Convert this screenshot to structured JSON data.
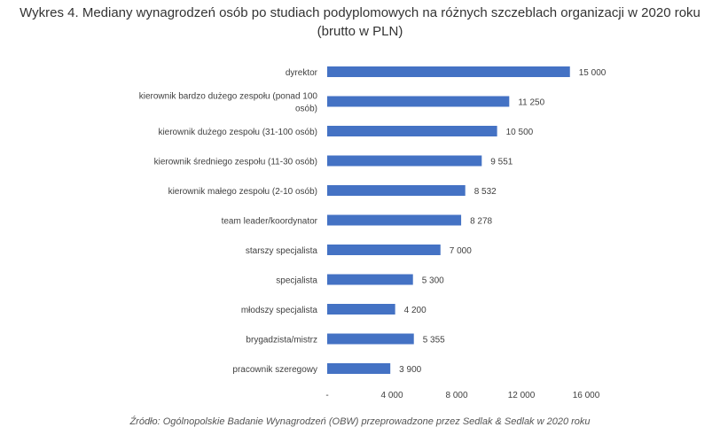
{
  "chart_data": {
    "type": "bar",
    "orientation": "horizontal",
    "title_line1": "Wykres 4. Mediany wynagrodzeń osób po studiach podyplomowych na różnych szczeblach organizacji w 2020 roku",
    "title_line2": "(brutto w PLN)",
    "categories": [
      [
        "dyrektor"
      ],
      [
        "kierownik bardzo  dużego zespołu (ponad 100",
        "osób)"
      ],
      [
        "kierownik dużego  zespołu (31-100 osób)"
      ],
      [
        "kierownik średniego zespołu (11-30 osób)"
      ],
      [
        "kierownik małego zespołu (2-10 osób)"
      ],
      [
        "team leader/koordynator"
      ],
      [
        "starszy specjalista"
      ],
      [
        "specjalista"
      ],
      [
        "młodszy specjalista"
      ],
      [
        "brygadzista/mistrz"
      ],
      [
        "pracownik szeregowy"
      ]
    ],
    "values": [
      15000,
      11250,
      10500,
      9551,
      8532,
      8278,
      7000,
      5300,
      4200,
      5355,
      3900
    ],
    "value_labels": [
      "15 000",
      "11 250",
      "10 500",
      "9 551",
      "8 532",
      "8 278",
      "7 000",
      "5 300",
      "4 200",
      "5 355",
      "3 900"
    ],
    "xlim": [
      0,
      16000
    ],
    "x_ticks": [
      0,
      4000,
      8000,
      12000,
      16000
    ],
    "x_tick_labels": [
      "-",
      "4 000",
      "8 000",
      "12 000",
      "16 000"
    ],
    "bar_color": "#4472C4",
    "grid": false,
    "source": "Źródło: Ogólnopolskie Badanie Wynagrodzeń (OBW) przeprowadzone przez Sedlak & Sedlak w 2020 roku"
  }
}
